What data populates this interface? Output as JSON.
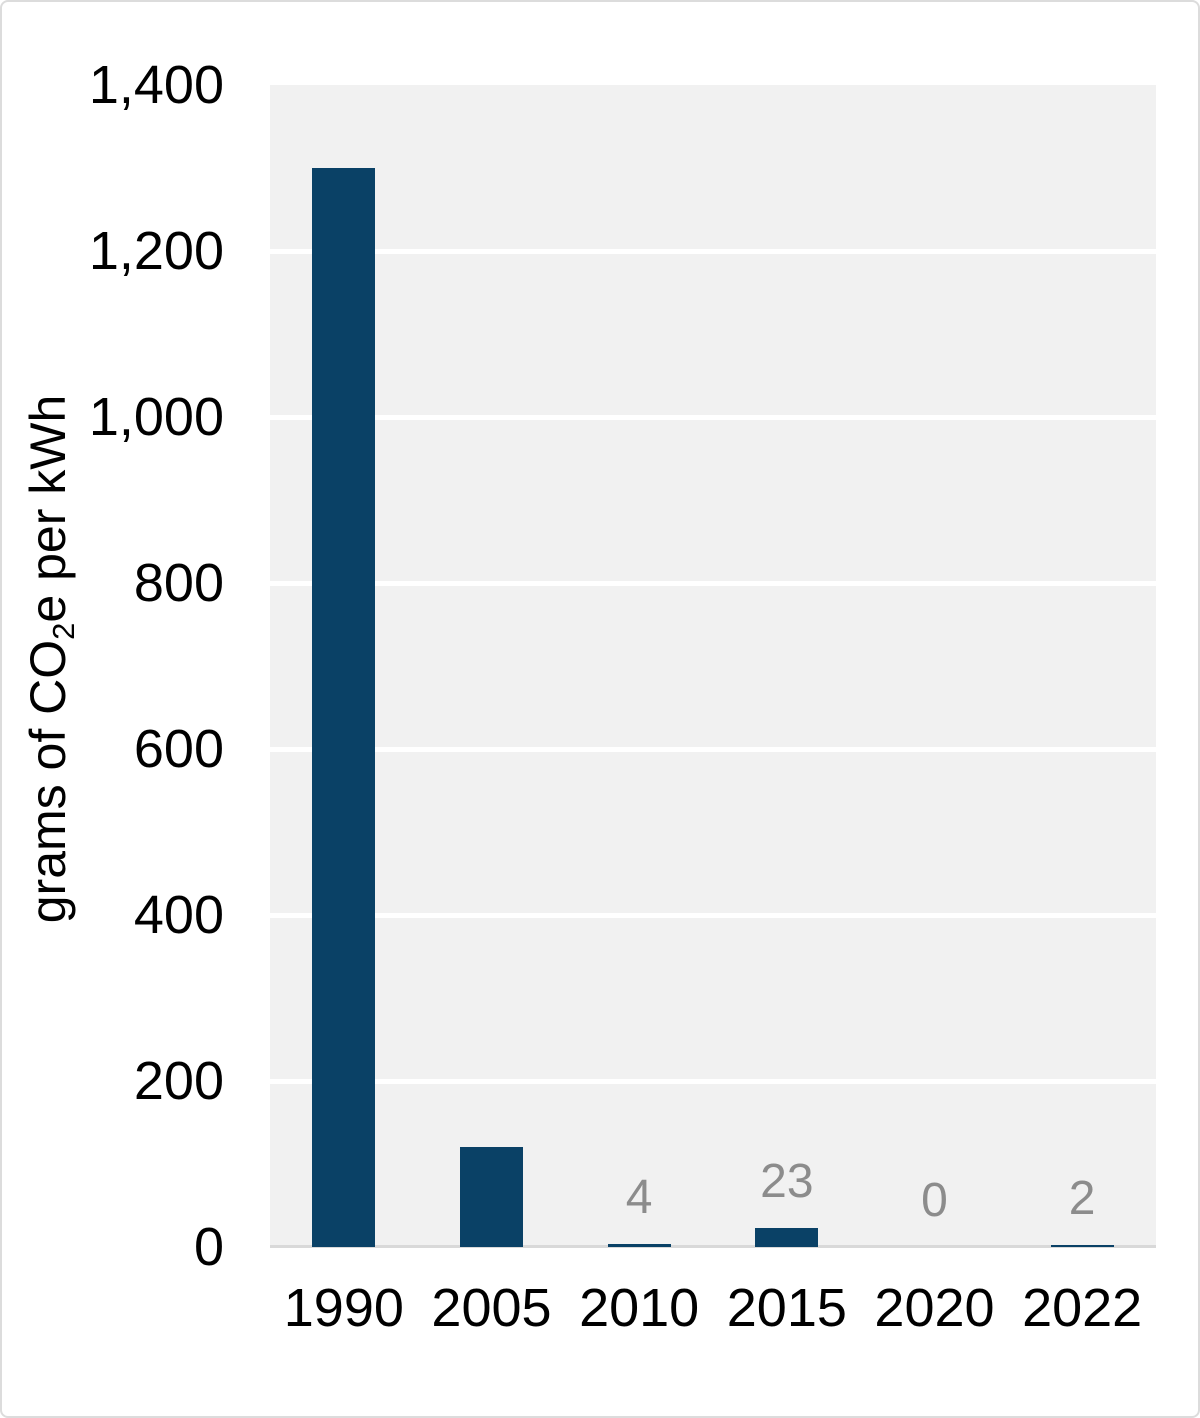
{
  "chart_data": {
    "type": "bar",
    "title": "",
    "ylabel": "grams of CO2e per kWh",
    "ylabel_parts": {
      "pre": "grams of CO",
      "sub": "2",
      "post": "e per kWh"
    },
    "xlabel": "",
    "categories": [
      "1990",
      "2005",
      "2010",
      "2015",
      "2020",
      "2022"
    ],
    "values": [
      1300,
      120,
      4,
      23,
      0,
      2
    ],
    "bar_labels": [
      "",
      "",
      "4",
      "23",
      "0",
      "2"
    ],
    "yticks": [
      "0",
      "200",
      "400",
      "600",
      "800",
      "1,000",
      "1,200",
      "1,400"
    ],
    "ytick_values": [
      0,
      200,
      400,
      600,
      800,
      1000,
      1200,
      1400
    ],
    "ylim": [
      0,
      1400
    ],
    "grid": true,
    "legend": false,
    "colors": {
      "bar": "#0a4166",
      "data_label": "#8c8c8c",
      "plot_bg": "#f1f1f1",
      "gridline": "#ffffff",
      "axis_line": "#d9d9d9",
      "text": "#000000",
      "border": "#dcdcdc"
    }
  }
}
